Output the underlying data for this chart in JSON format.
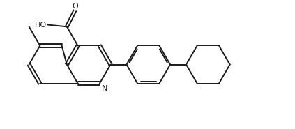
{
  "background_color": "#ffffff",
  "line_color": "#1a1a1a",
  "line_width": 1.4,
  "figsize": [
    4.23,
    1.85
  ],
  "dpi": 100,
  "xlim": [
    0,
    10.5
  ],
  "ylim": [
    0,
    4.5
  ]
}
